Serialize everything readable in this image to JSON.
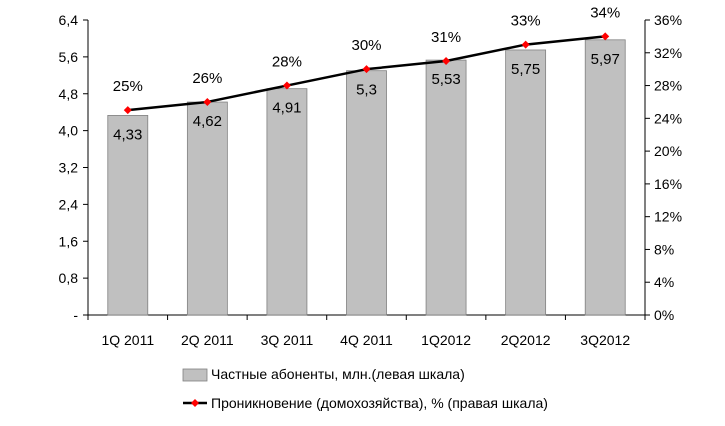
{
  "chart_data": {
    "type": "bar",
    "categories": [
      "1Q 2011",
      "2Q 2011",
      "3Q 2011",
      "4Q 2011",
      "1Q2012",
      "2Q2012",
      "3Q2012"
    ],
    "series": [
      {
        "name": "Частные абоненты, млн.(левая шкала)",
        "type": "bar",
        "axis": "left",
        "values": [
          4.33,
          4.62,
          4.91,
          5.3,
          5.53,
          5.75,
          5.97
        ],
        "labels": [
          "4,33",
          "4,62",
          "4,91",
          "5,3",
          "5,53",
          "5,75",
          "5,97"
        ],
        "color": "#c0c0c0"
      },
      {
        "name": "Проникновение (домохозяйства), % (правая шкала)",
        "type": "line",
        "axis": "right",
        "values": [
          25,
          26,
          28,
          30,
          31,
          33,
          34
        ],
        "labels": [
          "25%",
          "26%",
          "28%",
          "30%",
          "31%",
          "33%",
          "34%"
        ],
        "color": "#000000",
        "marker_color": "#ff0000"
      }
    ],
    "y_left": {
      "range": [
        0,
        6.4
      ],
      "ticks": [
        0,
        0.8,
        1.6,
        2.4,
        3.2,
        4.0,
        4.8,
        5.6,
        6.4
      ],
      "tick_labels": [
        "-",
        "0,8",
        "1,6",
        "2,4",
        "3,2",
        "4,0",
        "4,8",
        "5,6",
        "6,4"
      ]
    },
    "y_right": {
      "range": [
        0,
        36
      ],
      "ticks": [
        0,
        4,
        8,
        12,
        16,
        20,
        24,
        28,
        32,
        36
      ],
      "tick_labels": [
        "0%",
        "4%",
        "8%",
        "12%",
        "16%",
        "20%",
        "24%",
        "28%",
        "32%",
        "36%"
      ]
    },
    "grid": false,
    "legend_position": "bottom"
  }
}
